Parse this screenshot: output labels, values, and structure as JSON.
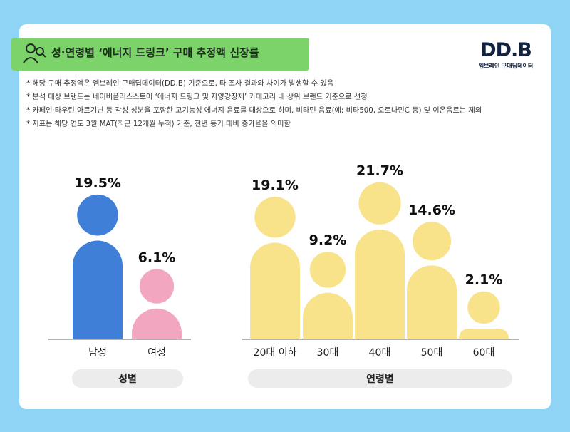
{
  "title": "성·연령별 ‘에너지 드링크’ 구매 추정액 신장률",
  "logo": {
    "main": "DD.B",
    "sub": "엠브레인 구매딥데이터"
  },
  "notes": [
    "* 해당 구매 추정액은 엠브레인 구매딥데이터(DD.B) 기준으로, 타 조사 결과와 차이가 발생할 수 있음",
    "* 분석 대상 브랜드는 네이버플러스스토어 ‘에너지 드링크 및 자양강장제’ 카테고리 내 상위 브랜드 기준으로 선정",
    "* 카페인·타우린·아르기닌 등 각성 성분을 포함한 고기능성 에너지 음료를 대상으로 하며, 비타민 음료(예: 비타500, 오로나민C 등) 및 이온음료는 제외",
    "* 지표는 해당 연도 3월 MAT(최근 12개월 누적) 기준, 전년 동기 대비 증가율을 의미함"
  ],
  "colors": {
    "male": "#3f7fd8",
    "female": "#f3a6bf",
    "age": "#f8e28a",
    "axis": "#999999"
  },
  "chart_data": [
    {
      "type": "bar",
      "group_label": "성별",
      "categories": [
        "남성",
        "여성"
      ],
      "values": [
        19.5,
        6.1
      ],
      "value_labels": [
        "19.5%",
        "6.1%"
      ],
      "unit": "%"
    },
    {
      "type": "bar",
      "group_label": "연령별",
      "categories": [
        "20대 이하",
        "30대",
        "40대",
        "50대",
        "60대"
      ],
      "values": [
        19.1,
        9.2,
        21.7,
        14.6,
        2.1
      ],
      "value_labels": [
        "19.1%",
        "9.2%",
        "21.7%",
        "14.6%",
        "2.1%"
      ],
      "unit": "%"
    }
  ]
}
